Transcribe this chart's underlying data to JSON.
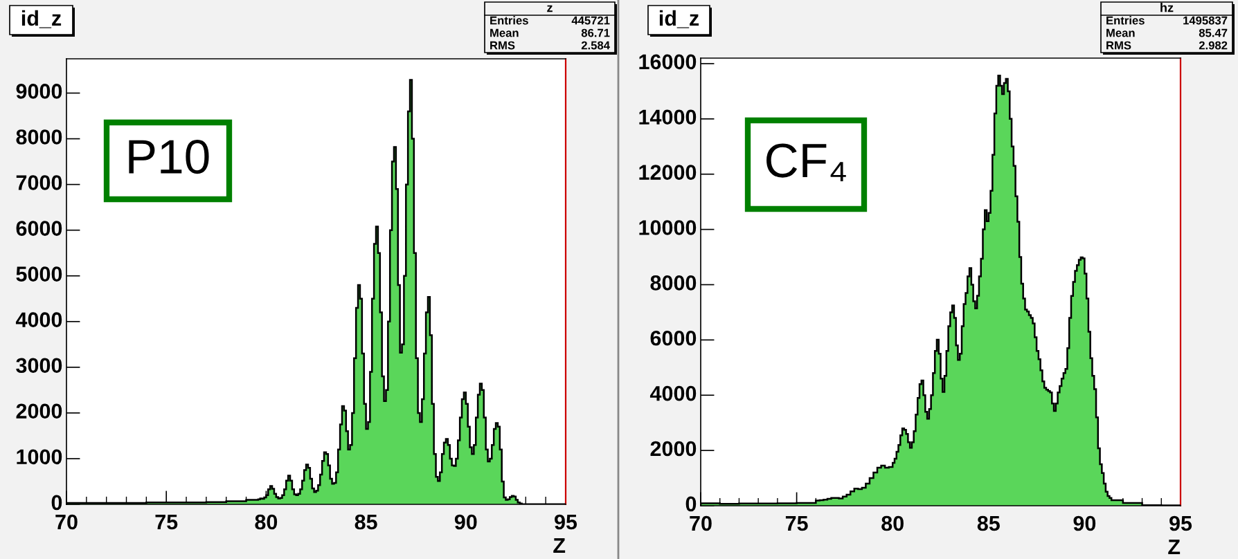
{
  "chart_data": [
    {
      "type": "histogram",
      "title": "id_z",
      "xlabel": "Z",
      "color": "#5ad65a",
      "bins": [
        70,
        71,
        72,
        73,
        74,
        75,
        76,
        77,
        78,
        79,
        79.6,
        79.7,
        79.8,
        79.9,
        80.0,
        80.1,
        80.2,
        80.3,
        80.4,
        80.5,
        80.6,
        80.7,
        80.8,
        80.9,
        81.0,
        81.1,
        81.2,
        81.3,
        81.4,
        81.5,
        81.6,
        81.7,
        81.8,
        81.9,
        82.0,
        82.1,
        82.2,
        82.3,
        82.4,
        82.5,
        82.6,
        82.7,
        82.8,
        82.9,
        83.0,
        83.1,
        83.2,
        83.3,
        83.4,
        83.5,
        83.6,
        83.7,
        83.8,
        83.9,
        84.0,
        84.1,
        84.2,
        84.3,
        84.4,
        84.5,
        84.6,
        84.7,
        84.8,
        84.9,
        85.0,
        85.1,
        85.2,
        85.3,
        85.4,
        85.5,
        85.6,
        85.7,
        85.8,
        85.9,
        86.0,
        86.1,
        86.2,
        86.3,
        86.4,
        86.5,
        86.6,
        86.7,
        86.8,
        86.9,
        87.0,
        87.1,
        87.2,
        87.3,
        87.4,
        87.5,
        87.6,
        87.7,
        87.8,
        87.9,
        88.0,
        88.1,
        88.2,
        88.3,
        88.4,
        88.5,
        88.6,
        88.7,
        88.8,
        88.9,
        89.0,
        89.1,
        89.2,
        89.3,
        89.4,
        89.5,
        89.6,
        89.7,
        89.8,
        89.9,
        90.0,
        90.1,
        90.2,
        90.3,
        90.4,
        90.5,
        90.6,
        90.7,
        90.8,
        90.9,
        91.0,
        91.1,
        91.2,
        91.3,
        91.4,
        91.5,
        91.6,
        91.7,
        91.8,
        91.9,
        92.0,
        92.1,
        92.2,
        92.3,
        92.4,
        92.5,
        92.6,
        92.7,
        92.8,
        95
      ],
      "values": [
        30,
        30,
        30,
        30,
        40,
        40,
        40,
        50,
        70,
        100,
        110,
        130,
        120,
        150,
        200,
        330,
        400,
        340,
        230,
        160,
        130,
        140,
        200,
        330,
        520,
        630,
        520,
        330,
        220,
        200,
        230,
        330,
        520,
        750,
        870,
        800,
        560,
        350,
        270,
        300,
        420,
        650,
        950,
        1140,
        1100,
        850,
        560,
        450,
        470,
        700,
        1200,
        1750,
        2150,
        2050,
        1600,
        1200,
        1300,
        2000,
        3200,
        4300,
        4800,
        4500,
        3300,
        2200,
        1650,
        1800,
        2900,
        4500,
        5700,
        6080,
        5500,
        4200,
        2800,
        2260,
        2500,
        4000,
        6000,
        7500,
        7820,
        6900,
        4800,
        3320,
        3500,
        5000,
        7000,
        8600,
        9290,
        8000,
        5500,
        3200,
        2000,
        1800,
        2300,
        3300,
        4200,
        4540,
        3700,
        2200,
        1100,
        600,
        510,
        700,
        1100,
        1350,
        1430,
        1300,
        1000,
        850,
        840,
        1000,
        1400,
        1900,
        2300,
        2450,
        2200,
        1700,
        1250,
        1100,
        1300,
        1900,
        2400,
        2640,
        2500,
        1900,
        1200,
        940,
        1000,
        1300,
        1650,
        1780,
        1700,
        1200,
        500,
        150,
        100,
        110,
        160,
        185,
        170,
        100,
        40,
        20,
        5
      ],
      "xlim": [
        70,
        95
      ],
      "xticks": [
        70,
        75,
        80,
        85,
        90,
        95
      ],
      "ylim": [
        0,
        9750
      ],
      "yticks": [
        0,
        1000,
        2000,
        3000,
        4000,
        5000,
        6000,
        7000,
        8000,
        9000
      ],
      "annotations": [
        "z",
        "Entries",
        "445721",
        "Mean",
        "86.71",
        "RMS",
        "2.584",
        "P10"
      ]
    },
    {
      "type": "histogram",
      "title": "id_z",
      "xlabel": "Z",
      "color": "#5ad65a",
      "bins": [
        70,
        71,
        72,
        73,
        74,
        75,
        76,
        76.2,
        76.4,
        76.6,
        76.8,
        77.0,
        77.2,
        77.4,
        77.6,
        77.8,
        78.0,
        78.2,
        78.4,
        78.6,
        78.8,
        79.0,
        79.2,
        79.4,
        79.6,
        79.8,
        80.0,
        80.1,
        80.2,
        80.3,
        80.4,
        80.5,
        80.6,
        80.7,
        80.8,
        80.9,
        81.0,
        81.1,
        81.2,
        81.3,
        81.4,
        81.5,
        81.6,
        81.7,
        81.8,
        81.9,
        82.0,
        82.1,
        82.2,
        82.3,
        82.4,
        82.5,
        82.6,
        82.7,
        82.8,
        82.9,
        83.0,
        83.1,
        83.2,
        83.3,
        83.4,
        83.5,
        83.6,
        83.7,
        83.8,
        83.9,
        84.0,
        84.1,
        84.2,
        84.3,
        84.4,
        84.5,
        84.6,
        84.7,
        84.8,
        84.9,
        85.0,
        85.1,
        85.2,
        85.3,
        85.4,
        85.5,
        85.6,
        85.7,
        85.8,
        85.9,
        86.0,
        86.1,
        86.2,
        86.3,
        86.4,
        86.5,
        86.6,
        86.7,
        86.8,
        86.9,
        87.0,
        87.1,
        87.2,
        87.3,
        87.4,
        87.5,
        87.6,
        87.7,
        87.8,
        87.9,
        88.0,
        88.1,
        88.2,
        88.3,
        88.4,
        88.5,
        88.6,
        88.7,
        88.8,
        88.9,
        89.0,
        89.1,
        89.2,
        89.3,
        89.4,
        89.5,
        89.6,
        89.7,
        89.8,
        89.9,
        90.0,
        90.1,
        90.2,
        90.3,
        90.4,
        90.5,
        90.6,
        90.7,
        90.8,
        90.9,
        91.0,
        91.1,
        91.2,
        91.3,
        91.4,
        92,
        93,
        94,
        95
      ],
      "values": [
        90,
        70,
        80,
        80,
        90,
        100,
        190,
        200,
        220,
        250,
        280,
        280,
        260,
        330,
        400,
        520,
        620,
        600,
        650,
        800,
        1000,
        1200,
        1380,
        1450,
        1380,
        1400,
        1550,
        1700,
        1950,
        2200,
        2550,
        2800,
        2750,
        2600,
        2300,
        2100,
        2300,
        2700,
        3300,
        3900,
        4400,
        4530,
        4000,
        3400,
        3150,
        3500,
        4000,
        4800,
        5600,
        6010,
        5500,
        4600,
        4120,
        4700,
        5600,
        6500,
        7000,
        7250,
        6800,
        5800,
        5280,
        5500,
        6500,
        7300,
        7700,
        8300,
        8600,
        8000,
        7400,
        7140,
        7600,
        8300,
        8940,
        10000,
        10700,
        10300,
        10600,
        11400,
        12700,
        14200,
        15200,
        15570,
        15200,
        14900,
        15300,
        15450,
        15000,
        14000,
        13000,
        12300,
        11200,
        10280,
        9000,
        8040,
        7500,
        7100,
        7030,
        6900,
        6800,
        6600,
        6100,
        5600,
        5300,
        4900,
        4500,
        4270,
        4200,
        4150,
        4100,
        3700,
        3430,
        3700,
        4100,
        4330,
        4600,
        4800,
        4950,
        5700,
        6800,
        7590,
        8100,
        8500,
        8710,
        8900,
        8990,
        8950,
        8400,
        7500,
        6300,
        5340,
        4700,
        4220,
        3200,
        2080,
        1500,
        1180,
        800,
        510,
        350,
        280,
        200,
        100,
        20,
        10
      ],
      "xlim": [
        70,
        95
      ],
      "xticks": [
        70,
        75,
        80,
        85,
        90,
        95
      ],
      "ylim": [
        0,
        16200
      ],
      "yticks": [
        0,
        2000,
        4000,
        6000,
        8000,
        10000,
        12000,
        14000,
        16000
      ],
      "annotations": [
        "hz",
        "Entries",
        "1495837",
        "Mean",
        "85.47",
        "RMS",
        "2.982",
        "CF₄"
      ]
    }
  ]
}
